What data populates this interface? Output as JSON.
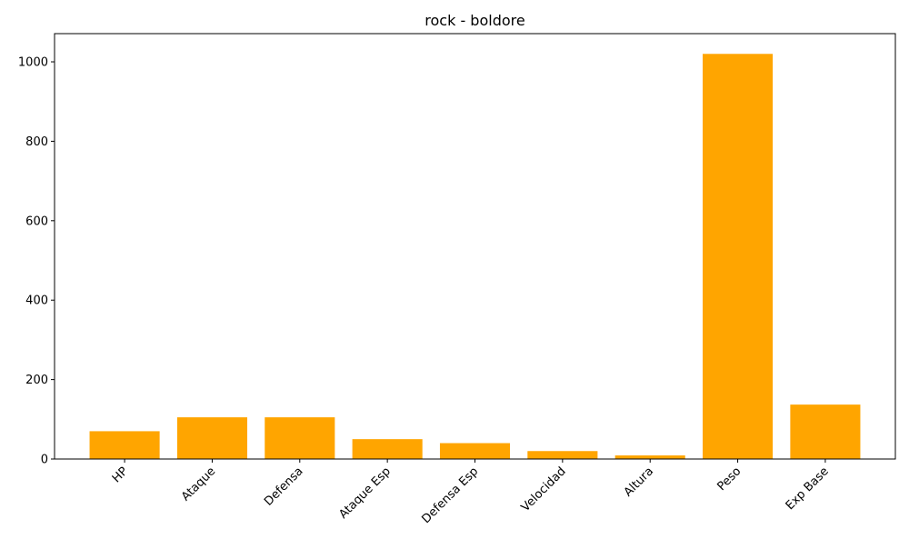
{
  "chart_data": {
    "type": "bar",
    "title": "rock - boldore",
    "xlabel": "",
    "ylabel": "",
    "categories": [
      "HP",
      "Ataque",
      "Defensa",
      "Ataque Esp",
      "Defensa Esp",
      "Velocidad",
      "Altura",
      "Peso",
      "Exp Base"
    ],
    "values": [
      70,
      105,
      105,
      50,
      40,
      20,
      9,
      1020,
      137
    ],
    "ylim": [
      0,
      1071
    ],
    "yticks": [
      0,
      200,
      400,
      600,
      800,
      1000
    ],
    "bar_color": "#FFA500",
    "grid": false,
    "legend": "none"
  }
}
